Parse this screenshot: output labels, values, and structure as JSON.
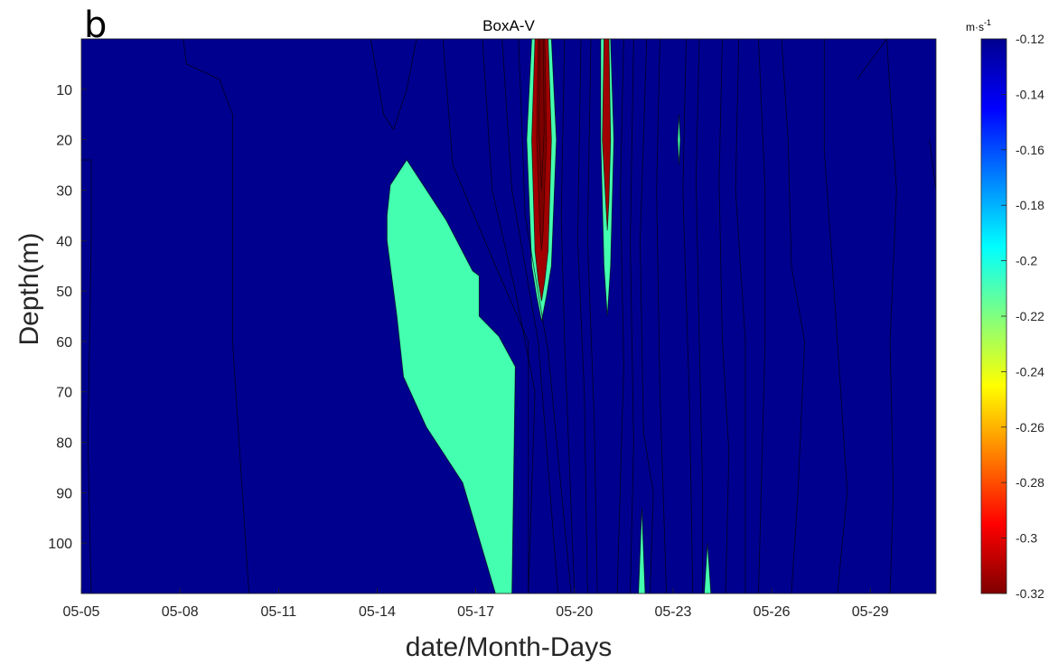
{
  "panel_label": "b",
  "colorbar": {
    "unit_base": "m·s",
    "unit_exp": "-1",
    "ticks": [
      "-0.12",
      "-0.14",
      "-0.16",
      "-0.18",
      "-0.2",
      "-0.22",
      "-0.24",
      "-0.26",
      "-0.28",
      "-0.3",
      "-0.32"
    ],
    "colormap": [
      "#7f0000",
      "#ff0000",
      "#ff8000",
      "#ffff00",
      "#80ff80",
      "#00ffff",
      "#0080ff",
      "#0000ff",
      "#00008f"
    ]
  },
  "chart_data": {
    "type": "heatmap",
    "title": "BoxA-V",
    "xlabel": "date/Month-Days",
    "ylabel": "Depth(m)",
    "x_ticks": [
      "05-05",
      "05-08",
      "05-11",
      "05-14",
      "05-17",
      "05-20",
      "05-23",
      "05-26",
      "05-29"
    ],
    "y_ticks": [
      "10",
      "20",
      "30",
      "40",
      "50",
      "60",
      "70",
      "80",
      "90",
      "100"
    ],
    "xlim": [
      "05-05",
      "05-31"
    ],
    "ylim": [
      110,
      0
    ],
    "y_inverted": true,
    "zlim": [
      -0.32,
      -0.12
    ],
    "z_unit": "m·s⁻¹",
    "background_level": -0.12,
    "colors": {
      "background": "#00008f",
      "mid": "#44ffb0",
      "core": "#a00000",
      "core_inner": "#7a0000"
    },
    "filled_regions": [
      {
        "level": -0.21,
        "color": "#44ffb0",
        "polygon": [
          [
            "05-14.9",
            24
          ],
          [
            "05-14.4",
            29
          ],
          [
            "05-14.3",
            35
          ],
          [
            "05-14.3",
            40
          ],
          [
            "05-14.6",
            55
          ],
          [
            "05-14.8",
            67
          ],
          [
            "05-15.5",
            77
          ],
          [
            "05-16.6",
            88
          ],
          [
            "05-17.6",
            110
          ],
          [
            "05-18.1",
            110
          ],
          [
            "05-18.2",
            65
          ],
          [
            "05-17.7",
            59
          ],
          [
            "05-17.1",
            55
          ],
          [
            "05-17.1",
            47
          ],
          [
            "05-16.9",
            46
          ],
          [
            "05-16.1",
            36
          ]
        ]
      },
      {
        "level": -0.21,
        "color": "#44ffb0",
        "polygon": [
          [
            "05-18.7",
            0
          ],
          [
            "05-19.3",
            0
          ],
          [
            "05-19.45",
            20
          ],
          [
            "05-19.3",
            45
          ],
          [
            "05-19.15",
            51
          ],
          [
            "05-19.0",
            56
          ],
          [
            "05-18.85",
            51
          ],
          [
            "05-18.7",
            45
          ],
          [
            "05-18.55",
            20
          ]
        ]
      },
      {
        "level": -0.21,
        "color": "#44ffb0",
        "polygon": [
          [
            "05-20.8",
            0
          ],
          [
            "05-21.1",
            0
          ],
          [
            "05-21.2",
            20
          ],
          [
            "05-21.1",
            45
          ],
          [
            "05-21.0",
            55
          ],
          [
            "05-20.9",
            45
          ],
          [
            "05-20.8",
            20
          ]
        ]
      },
      {
        "level": -0.3,
        "color": "#a00000",
        "polygon": [
          [
            "05-18.8",
            0
          ],
          [
            "05-19.2",
            0
          ],
          [
            "05-19.3",
            20
          ],
          [
            "05-19.2",
            42
          ],
          [
            "05-19.1",
            48
          ],
          [
            "05-19.0",
            52
          ],
          [
            "05-18.9",
            48
          ],
          [
            "05-18.8",
            42
          ],
          [
            "05-18.7",
            20
          ]
        ]
      },
      {
        "level": -0.3,
        "color": "#a00000",
        "polygon": [
          [
            "05-20.9",
            0
          ],
          [
            "05-21.05",
            0
          ],
          [
            "05-21.1",
            20
          ],
          [
            "05-21.05",
            32
          ],
          [
            "05-21.0",
            38
          ],
          [
            "05-20.95",
            32
          ],
          [
            "05-20.85",
            20
          ]
        ]
      },
      {
        "level": -0.21,
        "color": "#44ffb0",
        "polygon": [
          [
            "05-21.95",
            110
          ],
          [
            "05-22.05",
            93
          ],
          [
            "05-22.15",
            110
          ]
        ]
      },
      {
        "level": -0.21,
        "color": "#44ffb0",
        "polygon": [
          [
            "05-23.95",
            110
          ],
          [
            "05-24.05",
            100
          ],
          [
            "05-24.15",
            110
          ]
        ]
      },
      {
        "level": -0.21,
        "color": "#44ffb0",
        "polygon": [
          [
            "05-23.18",
            15
          ],
          [
            "05-23.22",
            20
          ],
          [
            "05-23.18",
            25
          ],
          [
            "05-23.14",
            20
          ]
        ]
      }
    ]
  }
}
